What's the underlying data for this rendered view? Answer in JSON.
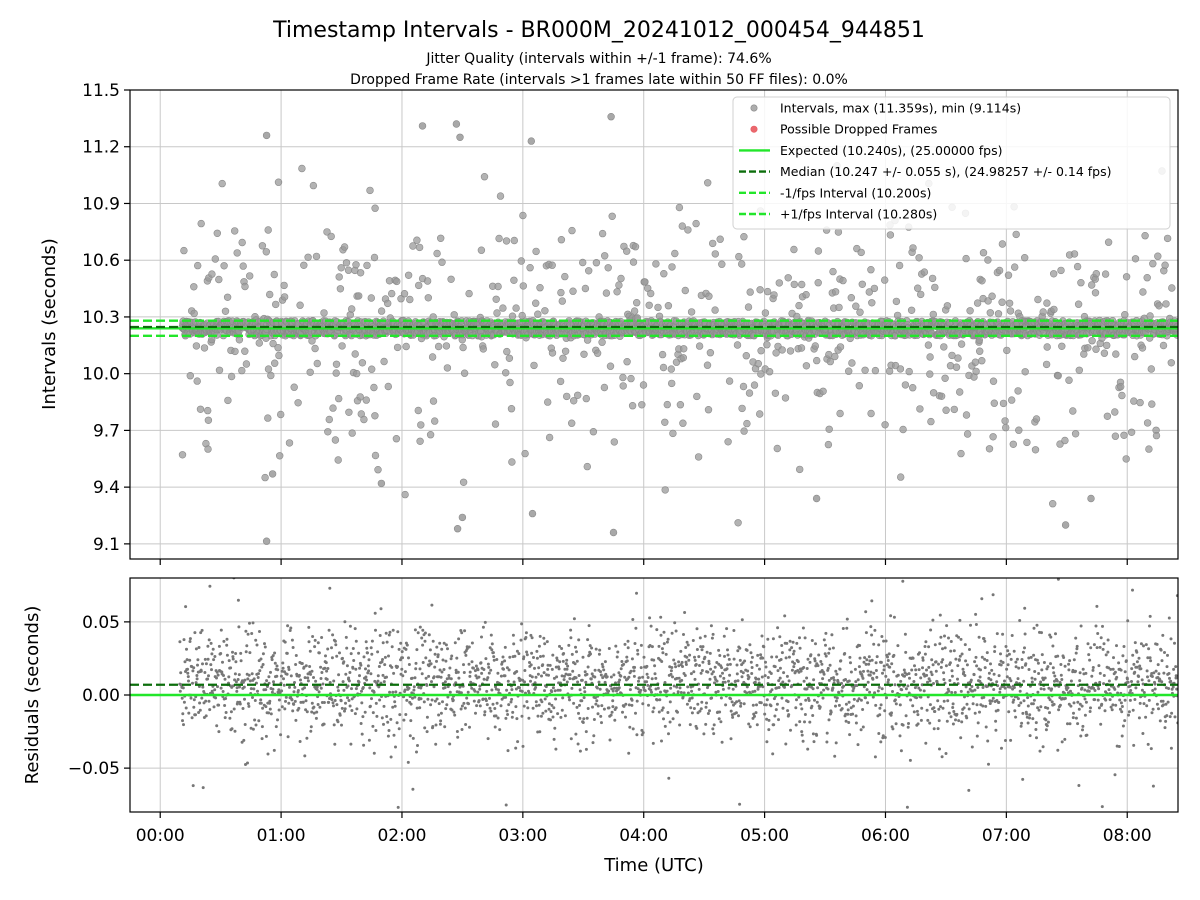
{
  "chart_data": [
    {
      "type": "scatter",
      "panel": "intervals",
      "title": "Timestamp Intervals - BR000M_20241012_000454_944851",
      "subtitle_lines": [
        "Jitter Quality (intervals within +/-1 frame): 74.6%",
        "Dropped Frame Rate (intervals >1 frames late within 50 FF files): 0.0%"
      ],
      "ylabel": "Intervals (seconds)",
      "ylim": [
        9.02,
        11.5
      ],
      "yticks": [
        9.1,
        9.4,
        9.7,
        10.0,
        10.3,
        10.6,
        10.9,
        11.2,
        11.5
      ],
      "ytick_labels": [
        "9.1",
        "9.4",
        "9.7",
        "10.0",
        "10.3",
        "10.6",
        "10.9",
        "11.2",
        "11.5"
      ],
      "xlim_hours": [
        -0.25,
        8.42
      ],
      "grid": true,
      "legend_position": "top-right",
      "legend": [
        {
          "label": "Intervals, max (11.359s), min (9.114s)",
          "kind": "dot",
          "color": "#999999"
        },
        {
          "label": "Possible Dropped Frames",
          "kind": "dot",
          "color": "#e8585e"
        },
        {
          "label": "Expected (10.240s), (25.00000 fps)",
          "kind": "solid",
          "color": "#22e62a"
        },
        {
          "label": "Median (10.247 +/- 0.055 s), (24.98257 +/- 0.14 fps)",
          "kind": "dash",
          "color": "#0c6e0c"
        },
        {
          "label": "-1/fps Interval (10.200s)",
          "kind": "dash",
          "color": "#22e62a"
        },
        {
          "label": "+1/fps Interval (10.280s)",
          "kind": "dash",
          "color": "#22e62a"
        }
      ],
      "reference_lines": {
        "expected": 10.24,
        "median": 10.247,
        "minus_1fps": 10.2,
        "plus_1fps": 10.28
      },
      "series": [
        {
          "name": "Intervals, max (11.359s), min (9.114s)",
          "color": "#999999",
          "time_range_hours": [
            0.18,
            8.42
          ],
          "count": 2800,
          "core_fraction": 0.746,
          "core_range": [
            10.2,
            10.28
          ],
          "max": 11.359,
          "min": 9.114,
          "points_sample": [
            {
              "x": 0.88,
              "y": 11.26
            },
            {
              "x": 0.88,
              "y": 9.114
            },
            {
              "x": 2.17,
              "y": 11.31
            },
            {
              "x": 2.45,
              "y": 11.32
            },
            {
              "x": 2.48,
              "y": 11.25
            },
            {
              "x": 3.07,
              "y": 11.23
            },
            {
              "x": 3.73,
              "y": 11.359
            },
            {
              "x": 3.75,
              "y": 9.16
            },
            {
              "x": 2.46,
              "y": 9.18
            },
            {
              "x": 2.5,
              "y": 9.24
            },
            {
              "x": 3.08,
              "y": 9.26
            },
            {
              "x": 7.49,
              "y": 9.2
            },
            {
              "x": 5.43,
              "y": 9.34
            },
            {
              "x": 7.7,
              "y": 9.34
            },
            {
              "x": 0.93,
              "y": 9.47
            },
            {
              "x": 1.83,
              "y": 9.42
            }
          ]
        },
        {
          "name": "Possible Dropped Frames",
          "color": "#e8585e",
          "values": []
        }
      ]
    },
    {
      "type": "scatter",
      "panel": "residuals",
      "ylabel": "Residuals (seconds)",
      "xlabel": "Time (UTC)",
      "ylim": [
        -0.08,
        0.08
      ],
      "yticks": [
        -0.05,
        0.0,
        0.05
      ],
      "ytick_labels": [
        "−0.05",
        "0.00",
        "0.05"
      ],
      "xlim_hours": [
        -0.25,
        8.42
      ],
      "xticks_hours": [
        0,
        1,
        2,
        3,
        4,
        5,
        6,
        7,
        8
      ],
      "xtick_labels": [
        "00:00",
        "01:00",
        "02:00",
        "03:00",
        "04:00",
        "05:00",
        "06:00",
        "07:00",
        "08:00"
      ],
      "grid": true,
      "reference_lines": {
        "zero": 0.0,
        "median_offset": 0.007
      },
      "series": [
        {
          "name": "Residuals",
          "color": "#777777",
          "time_range_hours": [
            0.16,
            8.42
          ],
          "count": 2800,
          "center": 0.008,
          "spread_sd": 0.018
        }
      ]
    }
  ],
  "colors": {
    "interval_dot": "#999999",
    "interval_edge": "#8a8a8a",
    "dropped": "#e8585e",
    "expected": "#22e62a",
    "median": "#0c6e0c",
    "residual_dot": "#777777",
    "grid": "#c8c8c8"
  }
}
